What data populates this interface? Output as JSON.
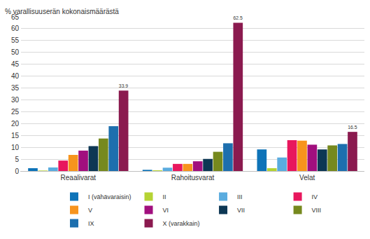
{
  "chart_data": {
    "type": "bar",
    "title": "% varallisuuserän kokonaismäärästä",
    "categories": [
      "Reaalivarat",
      "Rahoitusvarat",
      "Velat"
    ],
    "series": [
      {
        "name": "I (vähävaraisin)",
        "color": "#0e73b8",
        "values": [
          1.2,
          0.5,
          9.1
        ]
      },
      {
        "name": "II",
        "color": "#b5d334",
        "values": [
          0.2,
          0.3,
          1.2
        ]
      },
      {
        "name": "III",
        "color": "#5aacdf",
        "values": [
          1.5,
          1.4,
          5.7
        ]
      },
      {
        "name": "IV",
        "color": "#e8175d",
        "values": [
          4.4,
          3.0,
          13.0
        ]
      },
      {
        "name": "V",
        "color": "#f7941d",
        "values": [
          6.8,
          3.0,
          12.8
        ]
      },
      {
        "name": "VI",
        "color": "#a10f7e",
        "values": [
          8.6,
          4.1,
          11.1
        ]
      },
      {
        "name": "VII",
        "color": "#0d3754",
        "values": [
          10.5,
          5.1,
          9.1
        ]
      },
      {
        "name": "VIII",
        "color": "#76891e",
        "values": [
          13.7,
          8.1,
          10.8
        ]
      },
      {
        "name": "IX",
        "color": "#1d6fae",
        "values": [
          18.9,
          11.7,
          11.4
        ]
      },
      {
        "name": "X (varakkain)",
        "color": "#8b1a4f",
        "values": [
          33.9,
          62.5,
          16.5
        ],
        "data_labels": true
      }
    ],
    "ylim": [
      0,
      65
    ],
    "yticks": [
      0,
      5,
      10,
      15,
      20,
      25,
      30,
      35,
      40,
      45,
      50,
      55,
      60,
      65
    ],
    "grid": true,
    "legend": "bottom"
  }
}
